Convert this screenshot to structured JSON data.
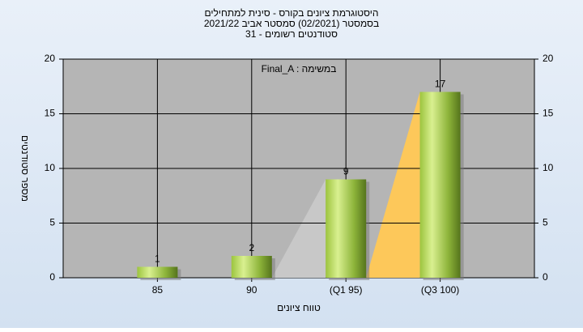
{
  "chart_data": {
    "type": "bar",
    "title": "היסטוגרמת ציונים בקורס - סינית למתחילים",
    "subtitle": "בסמסטר  (02/2021)  סמסטר אביב 2021/22",
    "subtitle2": "סטודנטים רשומים - 31",
    "annotation": "Final_A : במשימה",
    "x_label": "טווח ציונים",
    "y_label": "מספר סטודנטים",
    "categories": [
      "85",
      "90",
      "(Q1 95)",
      "(Q3 100)"
    ],
    "values": [
      1,
      2,
      9,
      17
    ],
    "ylim": [
      0,
      20
    ],
    "yticks": [
      0,
      5,
      10,
      15,
      20
    ],
    "y2lim": [
      0,
      20
    ],
    "y2ticks": [
      0,
      5,
      10,
      15,
      20
    ],
    "grid": true
  }
}
